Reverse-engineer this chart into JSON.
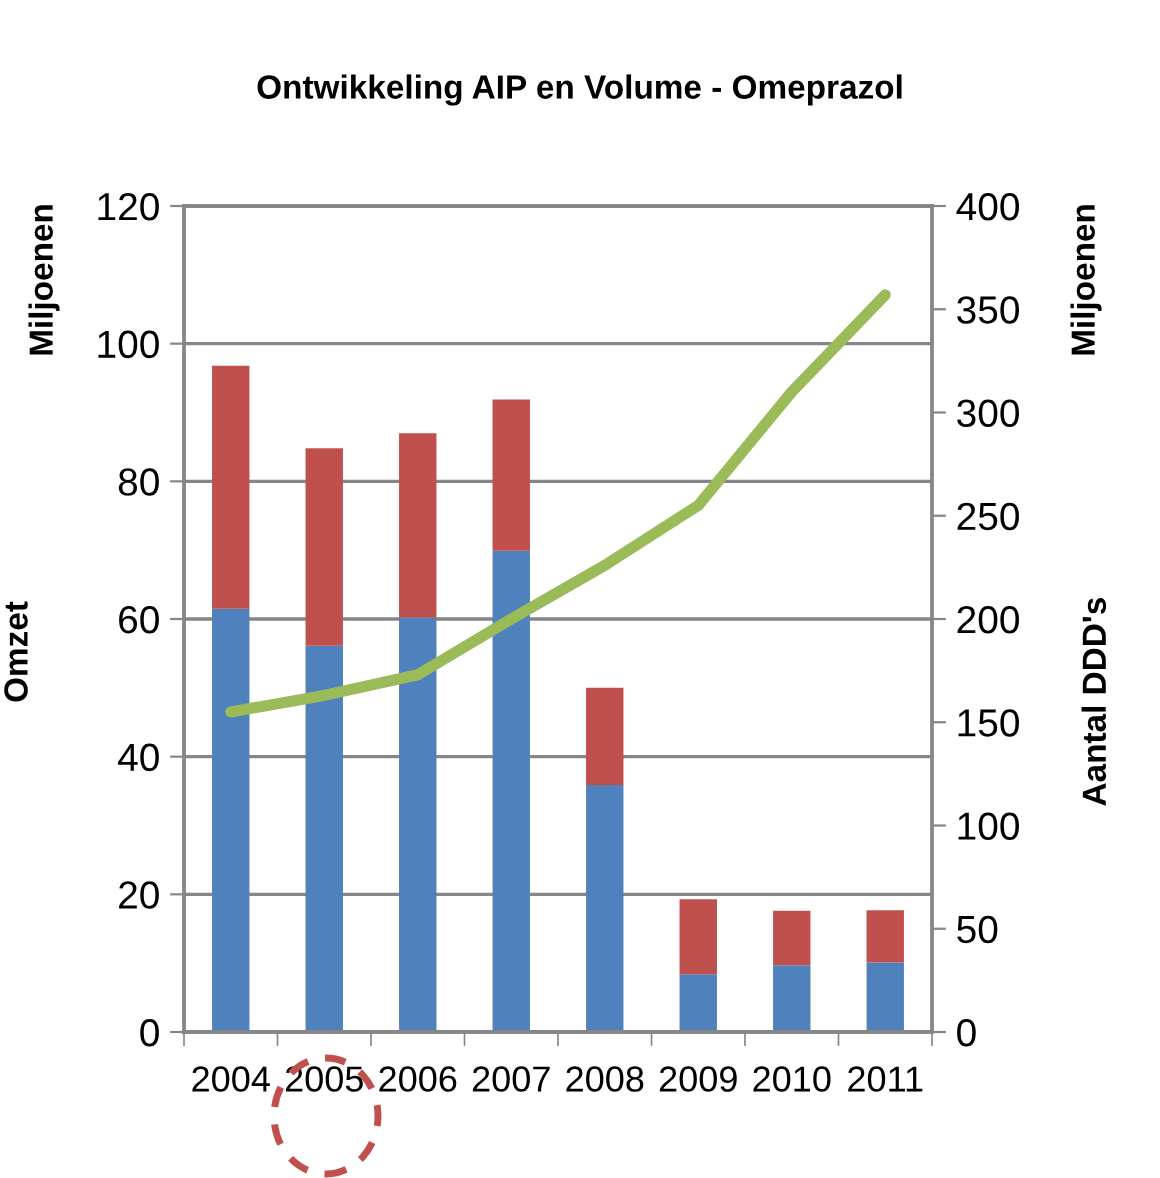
{
  "chart_data": {
    "type": "bar",
    "title": "Ontwikkeling AIP en Volume - Omeprazol",
    "ylabel": "Omzet",
    "y2label": "Aantal DDD's",
    "annotations": [
      "Miljoenen",
      "Miljoenen"
    ],
    "categories": [
      "2004",
      "2005",
      "2006",
      "2007",
      "2008",
      "2009",
      "2010",
      "2011"
    ],
    "stacked": true,
    "series": [
      {
        "color": "#4f81bd",
        "values": [
          61.5,
          56.1,
          60.2,
          69.9,
          35.9,
          8.4,
          9.7,
          10.1
        ]
      },
      {
        "color": "#c0504d",
        "values": [
          35.3,
          28.7,
          26.8,
          22.0,
          14.1,
          10.9,
          7.9,
          7.6
        ]
      },
      {
        "type": "line",
        "axis": "y2",
        "color": "#9bbb59",
        "values": [
          155,
          163,
          173,
          200,
          226,
          255,
          310,
          357
        ]
      }
    ],
    "ylim": [
      0,
      120
    ],
    "yticks": [
      0,
      20,
      40,
      60,
      80,
      100,
      120
    ],
    "y2lim": [
      0,
      400
    ],
    "y2ticks": [
      0,
      50,
      100,
      150,
      200,
      250,
      300,
      350,
      400
    ],
    "grid": "y",
    "legend": false
  }
}
